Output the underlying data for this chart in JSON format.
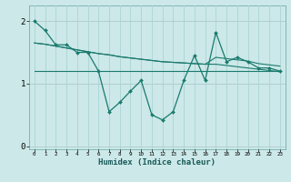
{
  "xlabel": "Humidex (Indice chaleur)",
  "bg_color": "#cce8e8",
  "grid_color_main": "#aad4d4",
  "grid_color_accent": "#e8b0b0",
  "line_color": "#1a7a6e",
  "x_data": [
    0,
    1,
    2,
    3,
    4,
    5,
    6,
    7,
    8,
    9,
    10,
    11,
    12,
    13,
    14,
    15,
    16,
    17,
    18,
    19,
    20,
    21,
    22,
    23
  ],
  "y_main": [
    2.0,
    1.85,
    1.62,
    1.62,
    1.5,
    1.5,
    1.2,
    0.55,
    0.7,
    0.88,
    1.05,
    0.5,
    0.42,
    0.55,
    1.05,
    1.45,
    1.05,
    1.82,
    1.35,
    1.42,
    1.35,
    1.25,
    1.25,
    1.2
  ],
  "y_trend1": [
    1.65,
    1.63,
    1.6,
    1.57,
    1.54,
    1.51,
    1.48,
    1.46,
    1.43,
    1.41,
    1.39,
    1.37,
    1.35,
    1.34,
    1.33,
    1.32,
    1.31,
    1.42,
    1.4,
    1.38,
    1.36,
    1.32,
    1.3,
    1.28
  ],
  "y_trend2": [
    1.65,
    1.63,
    1.6,
    1.57,
    1.54,
    1.51,
    1.48,
    1.46,
    1.43,
    1.41,
    1.39,
    1.37,
    1.35,
    1.34,
    1.33,
    1.32,
    1.31,
    1.31,
    1.29,
    1.27,
    1.25,
    1.23,
    1.21,
    1.19
  ],
  "y_flat": [
    1.2,
    1.2,
    1.2,
    1.2,
    1.2,
    1.2,
    1.2,
    1.2,
    1.2,
    1.2,
    1.2,
    1.2,
    1.2,
    1.2,
    1.2,
    1.2,
    1.2,
    1.2,
    1.2,
    1.2,
    1.2,
    1.2,
    1.2,
    1.2
  ],
  "ylim": [
    -0.05,
    2.25
  ],
  "yticks": [
    0,
    1,
    2
  ],
  "xlim": [
    -0.5,
    23.5
  ]
}
